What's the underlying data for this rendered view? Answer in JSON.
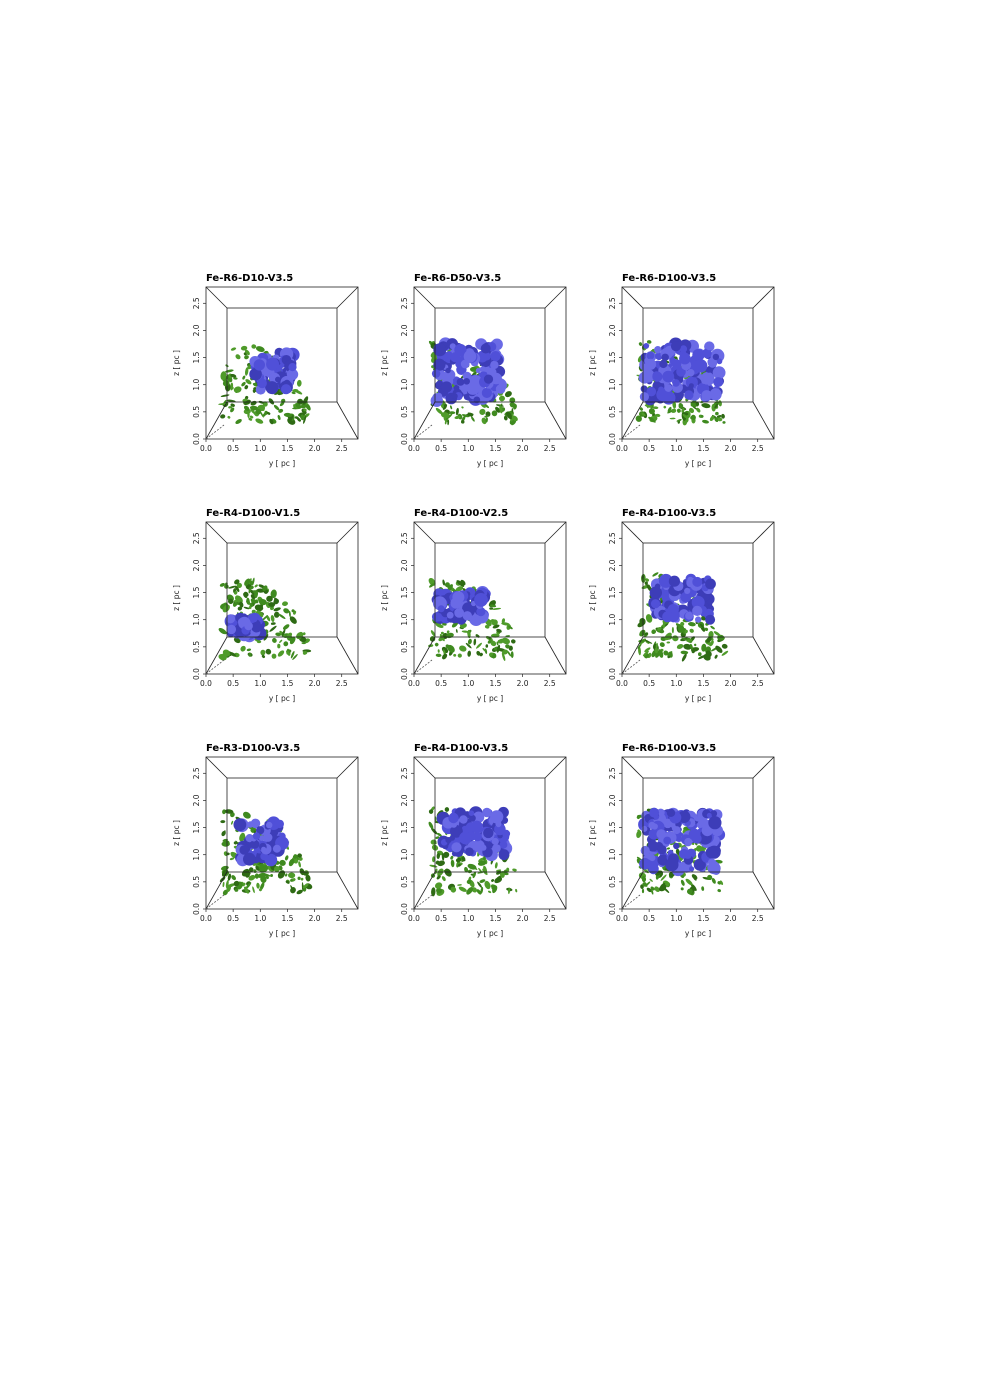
{
  "chart_data": [
    {
      "type": "3d-isosurface",
      "title": "Fe-R6-D10-V3.5",
      "xlabel": "y [ pc ]",
      "ylabel": "z [ pc ]",
      "x_ticks": [
        "0.0",
        "0.5",
        "1.0",
        "1.5",
        "2.0",
        "2.5"
      ],
      "y_ticks": [
        "0.0",
        "0.5",
        "1.0",
        "1.5",
        "2.0",
        "2.5"
      ],
      "xlim": [
        0,
        2.8
      ],
      "ylim": [
        0,
        2.8
      ],
      "colors": {
        "blue": "#5050d8",
        "green": "#3f8a1f"
      },
      "blue_extent": {
        "y": [
          0.9,
          1.6
        ],
        "z": [
          0.9,
          1.6
        ]
      },
      "green_extent": {
        "y": [
          0.3,
          1.9
        ],
        "z": [
          0.3,
          1.85
        ]
      }
    },
    {
      "type": "3d-isosurface",
      "title": "Fe-R6-D50-V3.5",
      "xlabel": "y [ pc ]",
      "ylabel": "z [ pc ]",
      "x_ticks": [
        "0.0",
        "0.5",
        "1.0",
        "1.5",
        "2.0",
        "2.5"
      ],
      "y_ticks": [
        "0.0",
        "0.5",
        "1.0",
        "1.5",
        "2.0",
        "2.5"
      ],
      "xlim": [
        0,
        2.8
      ],
      "ylim": [
        0,
        2.8
      ],
      "colors": {
        "blue": "#5050d8",
        "green": "#3f8a1f"
      },
      "blue_extent": {
        "y": [
          0.4,
          1.6
        ],
        "z": [
          0.7,
          1.75
        ]
      },
      "green_extent": {
        "y": [
          0.3,
          1.9
        ],
        "z": [
          0.3,
          1.8
        ]
      }
    },
    {
      "type": "3d-isosurface",
      "title": "Fe-R6-D100-V3.5",
      "xlabel": "y [ pc ]",
      "ylabel": "z [ pc ]",
      "x_ticks": [
        "0.0",
        "0.5",
        "1.0",
        "1.5",
        "2.0",
        "2.5"
      ],
      "y_ticks": [
        "0.0",
        "0.5",
        "1.0",
        "1.5",
        "2.0",
        "2.5"
      ],
      "xlim": [
        0,
        2.8
      ],
      "ylim": [
        0,
        2.8
      ],
      "colors": {
        "blue": "#5050d8",
        "green": "#3f8a1f"
      },
      "blue_extent": {
        "y": [
          0.4,
          1.8
        ],
        "z": [
          0.7,
          1.75
        ]
      },
      "green_extent": {
        "y": [
          0.3,
          1.9
        ],
        "z": [
          0.3,
          1.8
        ]
      }
    },
    {
      "type": "3d-isosurface",
      "title": "Fe-R4-D100-V1.5",
      "xlabel": "y [ pc ]",
      "ylabel": "z [ pc ]",
      "x_ticks": [
        "0.0",
        "0.5",
        "1.0",
        "1.5",
        "2.0",
        "2.5"
      ],
      "y_ticks": [
        "0.0",
        "0.5",
        "1.0",
        "1.5",
        "2.0",
        "2.5"
      ],
      "xlim": [
        0,
        2.8
      ],
      "ylim": [
        0,
        2.8
      ],
      "colors": {
        "blue": "#5050d8",
        "green": "#3f8a1f"
      },
      "blue_extent": {
        "y": [
          0.45,
          1.0
        ],
        "z": [
          0.7,
          1.05
        ]
      },
      "green_extent": {
        "y": [
          0.3,
          1.9
        ],
        "z": [
          0.3,
          1.8
        ]
      }
    },
    {
      "type": "3d-isosurface",
      "title": "Fe-R4-D100-V2.5",
      "xlabel": "y [ pc ]",
      "ylabel": "z [ pc ]",
      "x_ticks": [
        "0.0",
        "0.5",
        "1.0",
        "1.5",
        "2.0",
        "2.5"
      ],
      "y_ticks": [
        "0.0",
        "0.5",
        "1.0",
        "1.5",
        "2.0",
        "2.5"
      ],
      "xlim": [
        0,
        2.8
      ],
      "ylim": [
        0,
        2.8
      ],
      "colors": {
        "blue": "#5050d8",
        "green": "#3f8a1f"
      },
      "blue_extent": {
        "y": [
          0.4,
          1.35
        ],
        "z": [
          1.0,
          1.5
        ]
      },
      "green_extent": {
        "y": [
          0.3,
          1.9
        ],
        "z": [
          0.3,
          1.8
        ]
      }
    },
    {
      "type": "3d-isosurface",
      "title": "Fe-R4-D100-V3.5",
      "xlabel": "y [ pc ]",
      "ylabel": "z [ pc ]",
      "x_ticks": [
        "0.0",
        "0.5",
        "1.0",
        "1.5",
        "2.0",
        "2.5"
      ],
      "y_ticks": [
        "0.0",
        "0.5",
        "1.0",
        "1.5",
        "2.0",
        "2.5"
      ],
      "xlim": [
        0,
        2.8
      ],
      "ylim": [
        0,
        2.8
      ],
      "colors": {
        "blue": "#5050d8",
        "green": "#3f8a1f"
      },
      "blue_extent": {
        "y": [
          0.6,
          1.7
        ],
        "z": [
          1.0,
          1.75
        ]
      },
      "green_extent": {
        "y": [
          0.3,
          1.9
        ],
        "z": [
          0.3,
          1.85
        ]
      }
    },
    {
      "type": "3d-isosurface",
      "title": "Fe-R3-D100-V3.5",
      "xlabel": "y [ pc ]",
      "ylabel": "z [ pc ]",
      "x_ticks": [
        "0.0",
        "0.5",
        "1.0",
        "1.5",
        "2.0",
        "2.5"
      ],
      "y_ticks": [
        "0.0",
        "0.5",
        "1.0",
        "1.5",
        "2.0",
        "2.5"
      ],
      "xlim": [
        0,
        2.8
      ],
      "ylim": [
        0,
        2.8
      ],
      "colors": {
        "blue": "#5050d8",
        "green": "#3f8a1f"
      },
      "blue_extent": {
        "y": [
          0.6,
          1.4
        ],
        "z": [
          0.9,
          1.6
        ]
      },
      "green_extent": {
        "y": [
          0.3,
          1.9
        ],
        "z": [
          0.3,
          1.85
        ]
      }
    },
    {
      "type": "3d-isosurface",
      "title": "Fe-R4-D100-V3.5",
      "xlabel": "y [ pc ]",
      "ylabel": "z [ pc ]",
      "x_ticks": [
        "0.0",
        "0.5",
        "1.0",
        "1.5",
        "2.0",
        "2.5"
      ],
      "y_ticks": [
        "0.0",
        "0.5",
        "1.0",
        "1.5",
        "2.0",
        "2.5"
      ],
      "xlim": [
        0,
        2.8
      ],
      "ylim": [
        0,
        2.8
      ],
      "colors": {
        "blue": "#5050d8",
        "green": "#3f8a1f"
      },
      "blue_extent": {
        "y": [
          0.5,
          1.7
        ],
        "z": [
          1.0,
          1.8
        ]
      },
      "green_extent": {
        "y": [
          0.3,
          1.9
        ],
        "z": [
          0.3,
          1.85
        ]
      }
    },
    {
      "type": "3d-isosurface",
      "title": "Fe-R6-D100-V3.5",
      "xlabel": "y [ pc ]",
      "ylabel": "z [ pc ]",
      "x_ticks": [
        "0.0",
        "0.5",
        "1.0",
        "1.5",
        "2.0",
        "2.5"
      ],
      "y_ticks": [
        "0.0",
        "0.5",
        "1.0",
        "1.5",
        "2.0",
        "2.5"
      ],
      "xlim": [
        0,
        2.8
      ],
      "ylim": [
        0,
        2.8
      ],
      "colors": {
        "blue": "#5050d8",
        "green": "#3f8a1f"
      },
      "blue_extent": {
        "y": [
          0.4,
          1.8
        ],
        "z": [
          0.7,
          1.8
        ]
      },
      "green_extent": {
        "y": [
          0.3,
          1.9
        ],
        "z": [
          0.3,
          1.85
        ]
      }
    }
  ]
}
